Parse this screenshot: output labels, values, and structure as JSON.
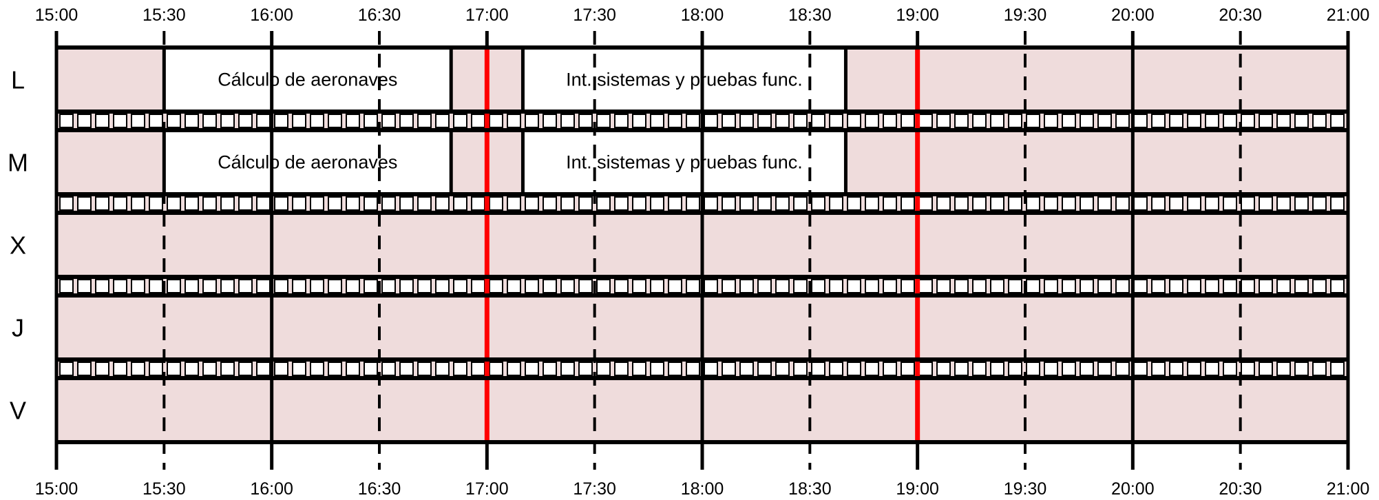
{
  "timeline": {
    "start_time": "15:00",
    "end_time": "21:00",
    "top_ticks": [
      "15:00",
      "15:30",
      "16:00",
      "16:30",
      "17:00",
      "17:30",
      "18:00",
      "18:30",
      "19:00",
      "19:30",
      "20:00",
      "20:30",
      "21:00"
    ],
    "bottom_ticks": [
      "15:00",
      "15:30",
      "16:00",
      "16:30",
      "17:00",
      "17:30",
      "18:00",
      "18:30",
      "19:00",
      "19:30",
      "20:00",
      "20:30",
      "21:00"
    ]
  },
  "days": [
    "L",
    "M",
    "X",
    "J",
    "V"
  ],
  "blocks": [
    {
      "day": "L",
      "label": "Cálculo de aeronaves",
      "start": "15:30",
      "end": "16:50"
    },
    {
      "day": "L",
      "label": "Int. sistemas y pruebas func.",
      "start": "17:10",
      "end": "18:40"
    },
    {
      "day": "M",
      "label": "Cálculo de aeronaves",
      "start": "15:30",
      "end": "16:50"
    },
    {
      "day": "M",
      "label": "Int. sistemas y pruebas func.",
      "start": "17:10",
      "end": "18:40"
    }
  ],
  "highlight_times": [
    "17:00",
    "19:00"
  ],
  "colors": {
    "background_fill": "#efdcdc",
    "block_fill": "#ffffff",
    "line": "#000000",
    "highlight": "#ff0000"
  }
}
